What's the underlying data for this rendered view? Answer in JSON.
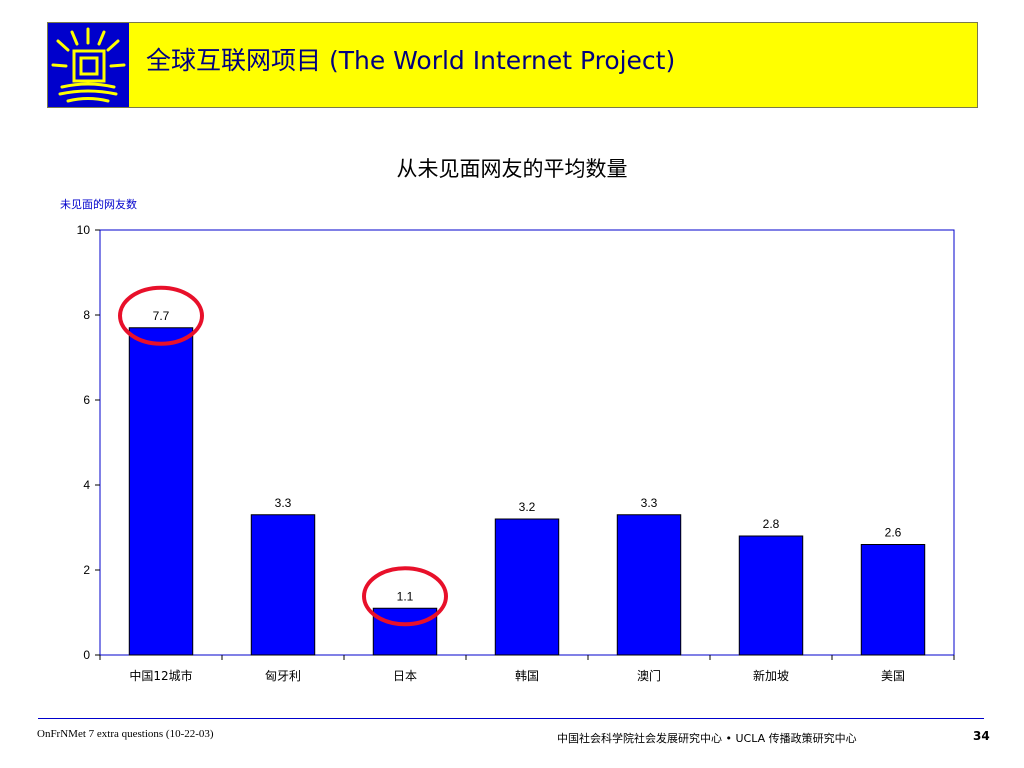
{
  "header": {
    "title": "全球互联网项目 (The World Internet Project)",
    "logo_icon": "window-logo-icon",
    "background_color": "#ffff00",
    "logo_color": "#0000cc"
  },
  "chart_data": {
    "type": "bar",
    "title": "从未见面网友的平均数量",
    "ylabel": "未见面的网友数",
    "xlabel": "",
    "categories": [
      "中国12城市",
      "匈牙利",
      "日本",
      "韩国",
      "澳门",
      "新加坡",
      "美国"
    ],
    "values": [
      7.7,
      3.3,
      1.1,
      3.2,
      3.3,
      2.8,
      2.6
    ],
    "value_labels": [
      "7.7",
      "3.3",
      "1.1",
      "3.2",
      "3.3",
      "2.8",
      "2.6"
    ],
    "ylim": [
      0,
      10
    ],
    "yticks": [
      "0",
      "2",
      "4",
      "6",
      "8",
      "10"
    ],
    "grid": false,
    "bar_color": "#0000ff",
    "highlighted_categories": [
      "中国12城市",
      "日本"
    ],
    "highlight_color": "#e8102a"
  },
  "footer": {
    "left": "OnFrNMet 7 extra questions (10-22-03)",
    "center": "中国社会科学院社会发展研究中心 • UCLA 传播政策研究中心",
    "page": "34"
  }
}
